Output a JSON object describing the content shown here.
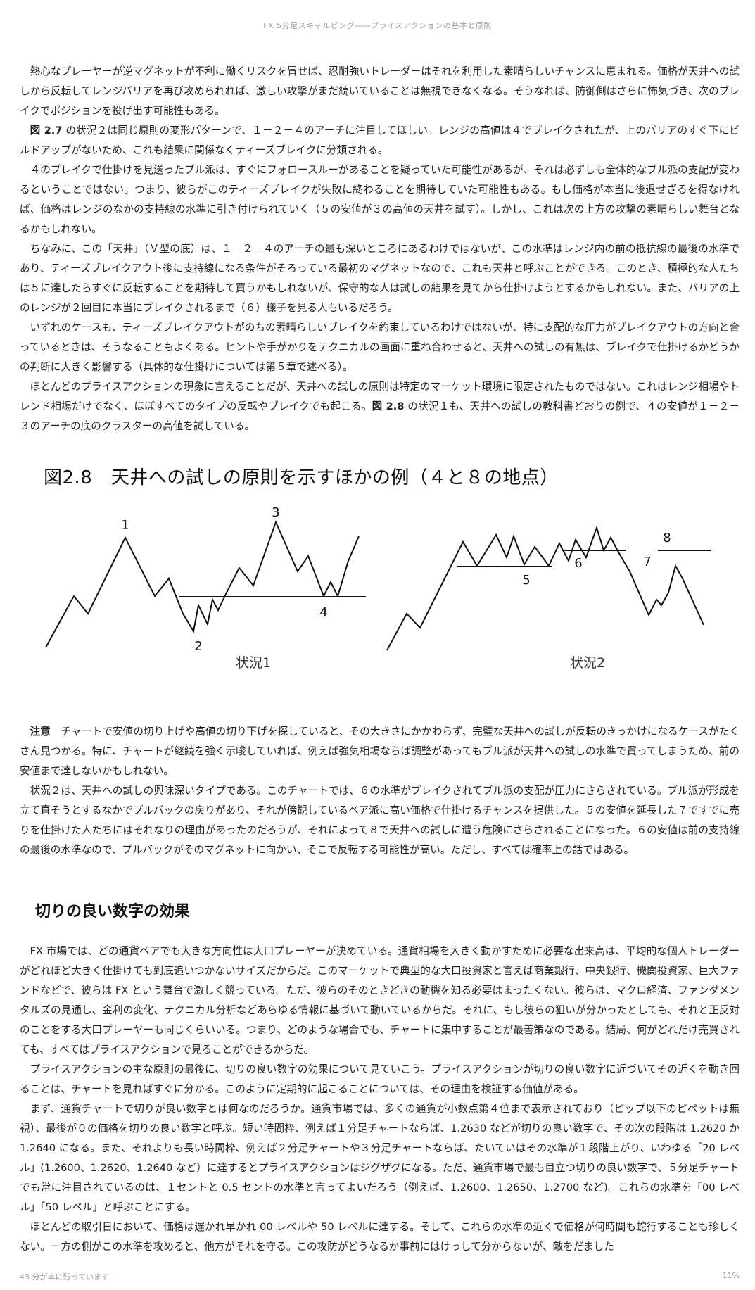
{
  "header": {
    "running_title": "FX 5分足スキャルピング――プライスアクションの基本と原則"
  },
  "body": {
    "paragraphs": [
      "熱心なプレーヤーが逆マグネットが不利に働くリスクを冒せば、忍耐強いトレーダーはそれを利用した素晴らしいチャンスに恵まれる。価格が天井への試しから反転してレンジバリアを再び攻められれば、激しい攻撃がまだ続いていることは無視できなくなる。そうなれば、防御側はさらに怖気づき、次のブレイクでポジションを投げ出す可能性もある。",
      "図 2.7 の状況２は同じ原則の変形パターンで、１－２－４のアーチに注目してほしい。レンジの高値は４でブレイクされたが、上のバリアのすぐ下にビルドアップがないため、これも結果に関係なくティーズブレイクに分類される。",
      "４のブレイクで仕掛けを見送ったブル派は、すぐにフォロースルーがあることを疑っていた可能性があるが、それは必ずしも全体的なブル派の支配が変わるということではない。つまり、彼らがこのティーズブレイクが失敗に終わることを期待していた可能性もある。もし価格が本当に後退せざるを得なければ、価格はレンジのなかの支持線の水準に引き付けられていく（５の安値が３の高値の天井を試す）。しかし、これは次の上方の攻撃の素晴らしい舞台となるかもしれない。",
      "ちなみに、この「天井」（Ｖ型の底）は、１－２－４のアーチの最も深いところにあるわけではないが、この水準はレンジ内の前の抵抗線の最後の水準であり、ティーズブレイクアウト後に支持線になる条件がそろっている最初のマグネットなので、これも天井と呼ぶことができる。このとき、積極的な人たちは５に達したらすぐに反転することを期待して買うかもしれないが、保守的な人は試しの結果を見てから仕掛けようとするかもしれない。また、バリアの上のレンジが２回目に本当にブレイクされるまで（６）様子を見る人もいるだろう。",
      "いずれのケースも、ティーズブレイクアウトがのちの素晴らしいブレイクを約束しているわけではないが、特に支配的な圧力がブレイクアウトの方向と合っているときは、そうなることもよくある。ヒントや手がかりをテクニカルの画面に重ね合わせると、天井への試しの有無は、ブレイクで仕掛けるかどうかの判断に大きく影響する（具体的な仕掛けについては第５章で述べる）。",
      "ほとんどのプライスアクションの現象に言えることだが、天井への試しの原則は特定のマーケット環境に限定されたものではない。これはレンジ相場やトレンド相場だけでなく、ほぼすべてのタイプの反転やブレイクでも起こる。図 2.8 の状況１も、天井への試しの教科書どおりの例で、４の安値が１－２－３のアーチの底のクラスターの高値を試している。"
    ]
  },
  "figure": {
    "title": "図2.8　天井への試しの原則を示すほかの例（４と８の地点）",
    "panel1": {
      "caption": "状況1",
      "labels": [
        "1",
        "2",
        "3",
        "4"
      ]
    },
    "panel2": {
      "caption": "状況2",
      "labels": [
        "5",
        "6",
        "7",
        "8"
      ]
    }
  },
  "note": {
    "label": "注意",
    "paragraphs": [
      "チャートで安値の切り上げや高値の切り下げを探していると、その大きさにかかわらず、完璧な天井への試しが反転のきっかけになるケースがたくさん見つかる。特に、チャートが継続を強く示唆していれば、例えば強気相場ならば調整があってもブル派が天井への試しの水準で買ってしまうため、前の安値まで達しないかもしれない。",
      "状況２は、天井への試しの興味深いタイプである。このチャートでは、６の水準がブレイクされてブル派の支配が圧力にさらされている。ブル派が形成を立て直そうとするなかでプルバックの戻りがあり、それが傍観しているベア派に高い価格で仕掛けるチャンスを提供した。５の安値を延長した７ですでに売りを仕掛けた人たちにはそれなりの理由があったのだろうが、それによって８で天井への試しに遭う危険にさらされることになった。６の安値は前の支持線の最後の水準なので、プルバックがそのマグネットに向かい、そこで反転する可能性が高い。ただし、すべては確率上の話ではある。"
    ]
  },
  "section": {
    "heading": "切りの良い数字の効果",
    "paragraphs": [
      "FX 市場では、どの通貨ペアでも大きな方向性は大口プレーヤーが決めている。通貨相場を大きく動かすために必要な出来高は、平均的な個人トレーダーがどれほど大きく仕掛けても到底追いつかないサイズだからだ。このマーケットで典型的な大口投資家と言えば商業銀行、中央銀行、機関投資家、巨大ファンドなどで、彼らは FX という舞台で激しく競っている。ただ、彼らのそのときどきの動機を知る必要はまったくない。彼らは、マクロ経済、ファンダメンタルズの見通し、金利の変化、テクニカル分析などあらゆる情報に基づいて動いているからだ。それに、もし彼らの狙いが分かったとしても、それと正反対のことをする大口プレーヤーも同じくらいいる。つまり、どのような場合でも、チャートに集中することが最善策なのである。結局、何がどれだけ売買されても、すべてはプライスアクションで見ることができるからだ。",
      "プライスアクションの主な原則の最後に、切りの良い数字の効果について見ていこう。プライスアクションが切りの良い数字に近づいてその近くを動き回ることは、チャートを見ればすぐに分かる。このように定期的に起こることについては、その理由を検証する価値がある。",
      "まず、通貨チャートで切りが良い数字とは何なのだろうか。通貨市場では、多くの通貨が小数点第４位まで表示されており（ピップ以下のピペットは無視）、最後が０の価格を切りの良い数字と呼ぶ。短い時間枠、例えば１分足チャートならば、1.2630 などが切りの良い数字で、その次の段階は 1.2620 か 1.2640 になる。また、それよりも長い時間枠、例えば２分足チャートや３分足チャートならば、たいていはその水準が１段階上がり、いわゆる「20 レベル」(1.2600、1.2620、1.2640 など）に達するとプライスアクションはジグザグになる。ただ、通貨市場で最も目立つ切りの良い数字で、５分足チャートでも常に注目されているのは、１セントと 0.5 セントの水準と言ってよいだろう（例えば、1.2600、1.2650、1.2700 など)。これらの水準を「00 レベル」「50 レベル」と呼ぶことにする。",
      "ほとんどの取引日において、価格は遅かれ早かれ 00 レベルや 50 レベルに達する。そして、これらの水準の近くで価格が何時間も蛇行することも珍しくない。一方の側がこの水準を攻めると、他方がそれを守る。この攻防がどうなるか事前にはけっして分からないが、敵をだました"
    ]
  },
  "footer": {
    "remaining": "43 分が本に残っています",
    "progress": "11%"
  }
}
